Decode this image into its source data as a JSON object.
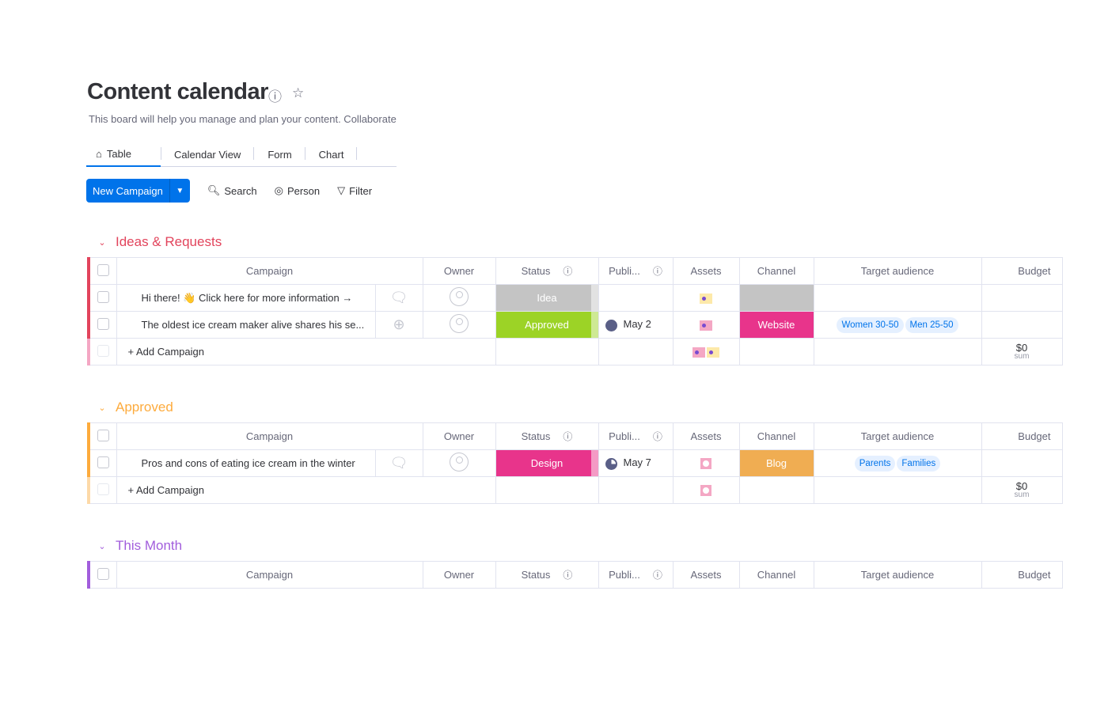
{
  "board": {
    "title": "Content calendar",
    "description": "This board will help you manage and plan your content. Collaborate",
    "info_icon": "info-icon",
    "star_icon": "star-icon"
  },
  "tabs": [
    {
      "label": "Table",
      "icon": "home-icon"
    },
    {
      "label": "Calendar View"
    },
    {
      "label": "Form"
    },
    {
      "label": "Chart"
    }
  ],
  "toolbar": {
    "new_label": "New Campaign",
    "search": "Search",
    "person": "Person",
    "filter": "Filter"
  },
  "columns": {
    "campaign": "Campaign",
    "owner": "Owner",
    "status": "Status",
    "publish": "Publi...",
    "assets": "Assets",
    "channel": "Channel",
    "target": "Target audience",
    "budget": "Budget"
  },
  "add_label": "+ Add Campaign",
  "colors": {
    "ideas": "#e2445c",
    "approved_group": "#fdab3d",
    "this_month": "#a25ddc",
    "idea": "#c4c4c4",
    "approved": "#9cd326",
    "website": "#e8348b",
    "design": "#e8348b",
    "blog": "#f0ad52"
  },
  "groups": [
    {
      "name": "Ideas & Requests",
      "rows": [
        {
          "campaign": "Hi there! 👋 Click here for more information →",
          "comments": "1",
          "status": "Idea",
          "publish": "",
          "channel": "",
          "tags": []
        },
        {
          "campaign": "The oldest ice cream maker alive shares his se...",
          "status": "Approved",
          "publish": "May 2",
          "channel": "Website",
          "tags": [
            "Women 30-50",
            "Men 25-50"
          ]
        }
      ],
      "sum": "$0",
      "sum_label": "sum"
    },
    {
      "name": "Approved",
      "rows": [
        {
          "campaign": "Pros and cons of eating ice cream in the winter",
          "comments": "1",
          "status": "Design",
          "publish": "May 7",
          "channel": "Blog",
          "tags": [
            "Parents",
            "Families"
          ]
        }
      ],
      "sum": "$0",
      "sum_label": "sum"
    },
    {
      "name": "This Month",
      "rows": []
    }
  ]
}
